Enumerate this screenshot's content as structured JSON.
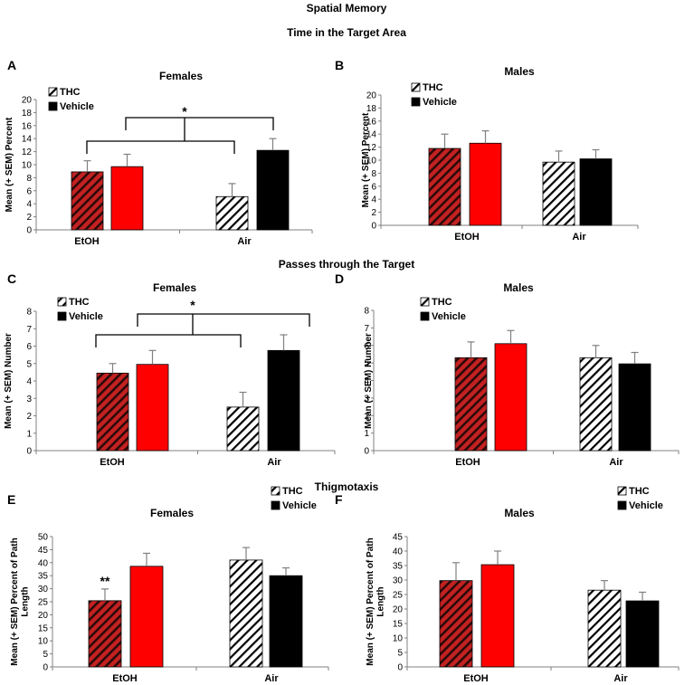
{
  "figure": {
    "title": "Spatial Memory",
    "sections": {
      "target_time": "Time in the Target Area",
      "passes": "Passes through the Target",
      "thigmotaxis": "Thigmotaxis"
    }
  },
  "colors": {
    "etoh_thc": "#c42121",
    "etoh_thc_stripe": "#2a0a0a",
    "etoh_vehicle": "#ff0000",
    "air_thc": "#ffffff",
    "air_thc_stripe": "#000000",
    "air_vehicle": "#000000",
    "axis": "#808080",
    "error": "#808080"
  },
  "chart_data": [
    {
      "type": "bar",
      "panel": "A",
      "title": "Females",
      "ylabel": "Mean (+ SEM) Percent",
      "ylim": [
        0,
        20
      ],
      "ytick_step": 2,
      "categories": [
        "EtOH",
        "Air"
      ],
      "legend": [
        "THC",
        "Vehicle"
      ],
      "values": [
        {
          "group": "EtOH",
          "series": "THC",
          "value": 8.9,
          "sem": 1.7
        },
        {
          "group": "EtOH",
          "series": "Vehicle",
          "value": 9.7,
          "sem": 1.9
        },
        {
          "group": "Air",
          "series": "THC",
          "value": 5.1,
          "sem": 2.0
        },
        {
          "group": "Air",
          "series": "Vehicle",
          "value": 12.2,
          "sem": 1.8
        }
      ],
      "annotation": "*"
    },
    {
      "type": "bar",
      "panel": "B",
      "title": "Males",
      "ylabel": "Mean (+ SEM) Percent",
      "ylim": [
        0,
        20
      ],
      "ytick_step": 2,
      "categories": [
        "EtOH",
        "Air"
      ],
      "legend": [
        "THC",
        "Vehicle"
      ],
      "values": [
        {
          "group": "EtOH",
          "series": "THC",
          "value": 11.8,
          "sem": 2.2
        },
        {
          "group": "EtOH",
          "series": "Vehicle",
          "value": 12.6,
          "sem": 1.9
        },
        {
          "group": "Air",
          "series": "THC",
          "value": 9.7,
          "sem": 1.7
        },
        {
          "group": "Air",
          "series": "Vehicle",
          "value": 10.2,
          "sem": 1.4
        }
      ]
    },
    {
      "type": "bar",
      "panel": "C",
      "title": "Females",
      "ylabel": "Mean (+ SEM) Number",
      "ylim": [
        0,
        8
      ],
      "ytick_step": 1,
      "categories": [
        "EtOH",
        "Air"
      ],
      "legend": [
        "THC",
        "Vehicle"
      ],
      "values": [
        {
          "group": "EtOH",
          "series": "THC",
          "value": 4.45,
          "sem": 0.55
        },
        {
          "group": "EtOH",
          "series": "Vehicle",
          "value": 4.95,
          "sem": 0.8
        },
        {
          "group": "Air",
          "series": "THC",
          "value": 2.5,
          "sem": 0.85
        },
        {
          "group": "Air",
          "series": "Vehicle",
          "value": 5.75,
          "sem": 0.9
        }
      ],
      "annotation": "*"
    },
    {
      "type": "bar",
      "panel": "D",
      "title": "Males",
      "ylabel": "Mean (+ SEM) Number",
      "ylim": [
        0,
        8
      ],
      "ytick_step": 1,
      "categories": [
        "EtOH",
        "Air"
      ],
      "legend": [
        "THC",
        "Vehicle"
      ],
      "values": [
        {
          "group": "EtOH",
          "series": "THC",
          "value": 5.3,
          "sem": 0.9
        },
        {
          "group": "EtOH",
          "series": "Vehicle",
          "value": 6.1,
          "sem": 0.75
        },
        {
          "group": "Air",
          "series": "THC",
          "value": 5.3,
          "sem": 0.7
        },
        {
          "group": "Air",
          "series": "Vehicle",
          "value": 4.95,
          "sem": 0.65
        }
      ]
    },
    {
      "type": "bar",
      "panel": "E",
      "title": "Females",
      "ylabel": "Mean (+ SEM) Percent of Path Length",
      "ylim": [
        0,
        50
      ],
      "ytick_step": 5,
      "categories": [
        "EtOH",
        "Air"
      ],
      "legend": [
        "THC",
        "Vehicle"
      ],
      "values": [
        {
          "group": "EtOH",
          "series": "THC",
          "value": 25.4,
          "sem": 4.5,
          "label": "**"
        },
        {
          "group": "EtOH",
          "series": "Vehicle",
          "value": 38.6,
          "sem": 5.0
        },
        {
          "group": "Air",
          "series": "THC",
          "value": 41.0,
          "sem": 4.8
        },
        {
          "group": "Air",
          "series": "Vehicle",
          "value": 35.0,
          "sem": 3.0
        }
      ]
    },
    {
      "type": "bar",
      "panel": "F",
      "title": "Males",
      "ylabel": "Mean (+ SEM) Percent of Path Length",
      "ylim": [
        0,
        45
      ],
      "ytick_step": 5,
      "categories": [
        "EtOH",
        "Air"
      ],
      "legend": [
        "THC",
        "Vehicle"
      ],
      "values": [
        {
          "group": "EtOH",
          "series": "THC",
          "value": 29.8,
          "sem": 6.2
        },
        {
          "group": "EtOH",
          "series": "Vehicle",
          "value": 35.3,
          "sem": 4.7
        },
        {
          "group": "Air",
          "series": "THC",
          "value": 26.5,
          "sem": 3.3
        },
        {
          "group": "Air",
          "series": "Vehicle",
          "value": 22.8,
          "sem": 3.0
        }
      ]
    }
  ]
}
